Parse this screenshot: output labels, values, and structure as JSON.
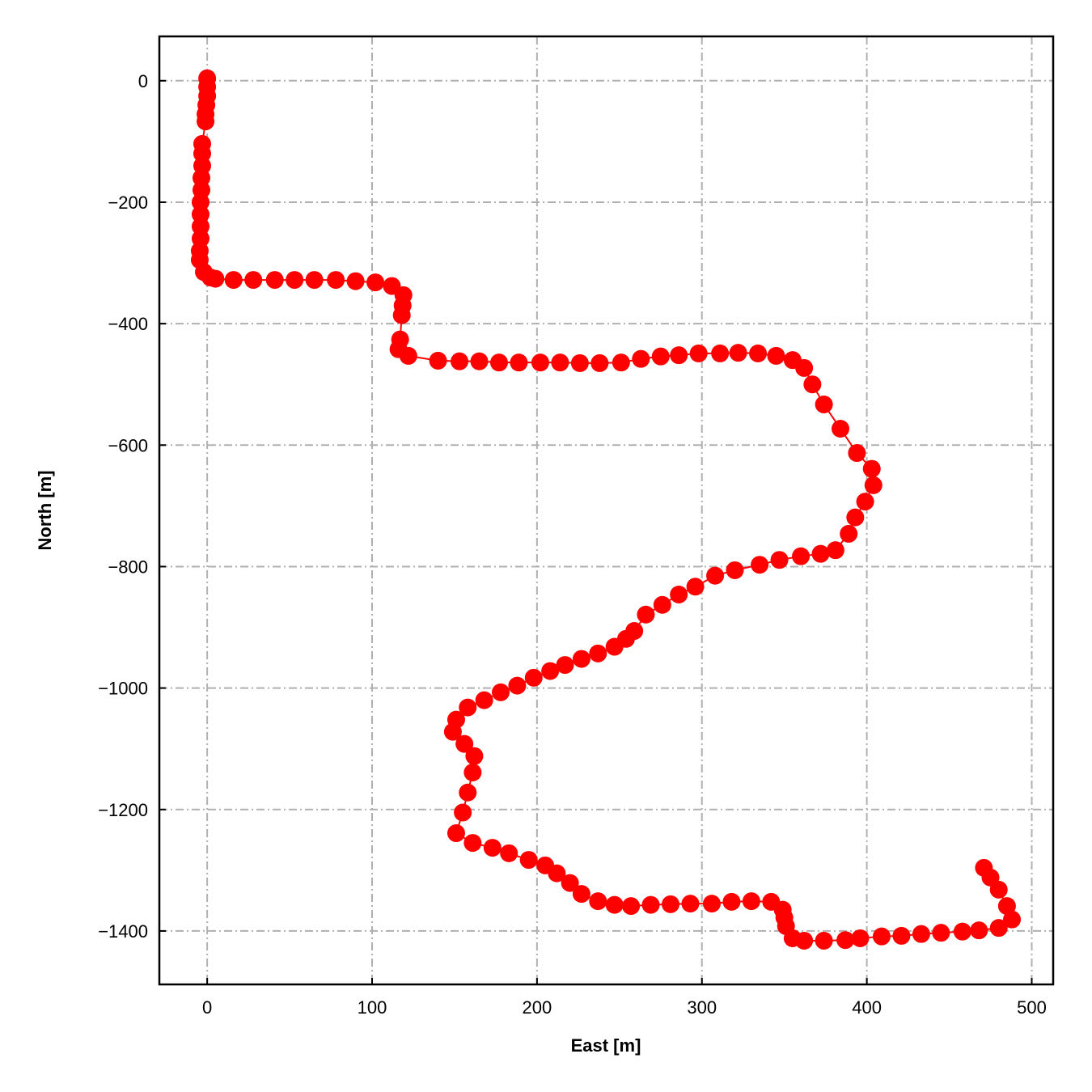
{
  "chart_data": {
    "type": "line",
    "xlabel": "East [m]",
    "ylabel": "North [m]",
    "xlim": [
      -29,
      513
    ],
    "ylim": [
      -1488,
      73
    ],
    "xticks": [
      0,
      100,
      200,
      300,
      400,
      500
    ],
    "yticks": [
      0,
      -200,
      -400,
      -600,
      -800,
      -1000,
      -1200,
      -1400
    ],
    "xtick_labels": [
      "0",
      "100",
      "200",
      "300",
      "400",
      "500"
    ],
    "ytick_labels": [
      "0",
      "−200",
      "−400",
      "−600",
      "−800",
      "−1000",
      "−1200",
      "−1400"
    ],
    "grid": true,
    "marker": "circle",
    "color": "#ff0000",
    "series": [
      {
        "x": [
          0,
          0,
          0,
          -0.5,
          -1,
          -1,
          -3,
          -3,
          -3,
          -3.5,
          -3.5,
          -4,
          -4,
          -4,
          -4,
          -4.5,
          -4.5,
          -2,
          2,
          5,
          16,
          28,
          41,
          53,
          65,
          78,
          90,
          102,
          112,
          119,
          118.5,
          118,
          117,
          116,
          122,
          140,
          153,
          165,
          177,
          189,
          202,
          214,
          226,
          238,
          251,
          263,
          275,
          286,
          298,
          311,
          322,
          334,
          345,
          355,
          362,
          367,
          374,
          384,
          394,
          403,
          404,
          399,
          393,
          389,
          381,
          372,
          360,
          347,
          335,
          320,
          308,
          296,
          286,
          276,
          266,
          259,
          254,
          247,
          237,
          227,
          217,
          208,
          198,
          188,
          178,
          168,
          158,
          151,
          149,
          156,
          162,
          161,
          158,
          155,
          151,
          161,
          173,
          183,
          195,
          205,
          212,
          220,
          227,
          237,
          247,
          257,
          269,
          281,
          293,
          306,
          318,
          330,
          342,
          349,
          350,
          351,
          355,
          362,
          374,
          387,
          396,
          409,
          421,
          433,
          445,
          458,
          468,
          480,
          488,
          485,
          480,
          475,
          471
        ],
        "y": [
          4,
          -10,
          -25,
          -40,
          -55,
          -67,
          -104,
          -120,
          -140,
          -160,
          -180,
          -200,
          -220,
          -240,
          -260,
          -280,
          -295,
          -315,
          -324,
          -326,
          -328,
          -328,
          -328,
          -328,
          -328,
          -328,
          -330,
          -332,
          -338,
          -353,
          -370,
          -386,
          -426,
          -442,
          -453,
          -461,
          -462,
          -462,
          -464,
          -464,
          -464,
          -464,
          -465,
          -465,
          -464,
          -458,
          -454,
          -452,
          -449,
          -449,
          -448,
          -449,
          -453,
          -460,
          -473,
          -500,
          -533,
          -573,
          -613,
          -639,
          -666,
          -693,
          -719,
          -746,
          -773,
          -779,
          -783,
          -789,
          -797,
          -806,
          -815,
          -833,
          -846,
          -863,
          -879,
          -906,
          -919,
          -932,
          -943,
          -952,
          -962,
          -972,
          -983,
          -996,
          -1007,
          -1020,
          -1032,
          -1052,
          -1072,
          -1092,
          -1112,
          -1139,
          -1172,
          -1205,
          -1239,
          -1255,
          -1263,
          -1272,
          -1283,
          -1292,
          -1305,
          -1321,
          -1339,
          -1351,
          -1357,
          -1359,
          -1357,
          -1356,
          -1355,
          -1355,
          -1352,
          -1351,
          -1352,
          -1365,
          -1378,
          -1392,
          -1412,
          -1416,
          -1416,
          -1415,
          -1412,
          -1409,
          -1408,
          -1405,
          -1403,
          -1401,
          -1399,
          -1395,
          -1381,
          -1359,
          -1332,
          -1312,
          -1296
        ]
      }
    ]
  }
}
